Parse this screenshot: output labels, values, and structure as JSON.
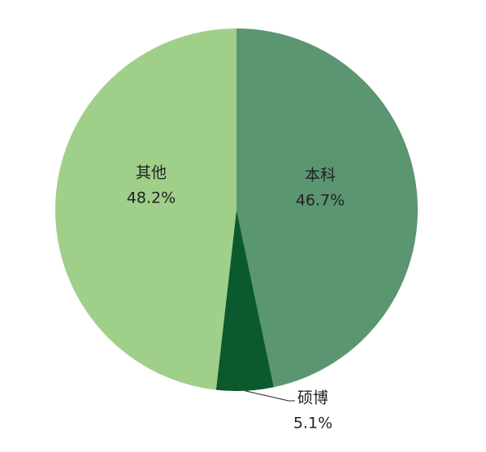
{
  "chart_data": {
    "type": "pie",
    "categories": [
      "本科",
      "硕博",
      "其他"
    ],
    "values": [
      46.7,
      5.1,
      48.2
    ],
    "value_labels": [
      "46.7%",
      "5.1%",
      "48.2%"
    ],
    "colors": [
      "#5a9670",
      "#0b5a2d",
      "#a0cf8a"
    ]
  }
}
